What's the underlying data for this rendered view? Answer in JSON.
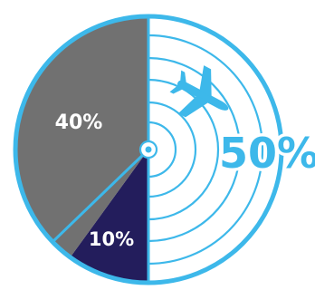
{
  "colors": {
    "outline": "#3db8ea",
    "slice_gray": "#717171",
    "slice_navy": "#231d5c",
    "background": "#ffffff"
  },
  "chart_data": {
    "type": "pie",
    "slices": [
      {
        "label": "50%",
        "value": 50,
        "color": "#ffffff",
        "icon": "airplane-icon",
        "decoration": "radar-rings"
      },
      {
        "label": "10%",
        "value": 10,
        "color": "#231d5c"
      },
      {
        "label": "40%",
        "value": 40,
        "color": "#717171"
      }
    ],
    "start": "top",
    "direction": "clockwise"
  }
}
